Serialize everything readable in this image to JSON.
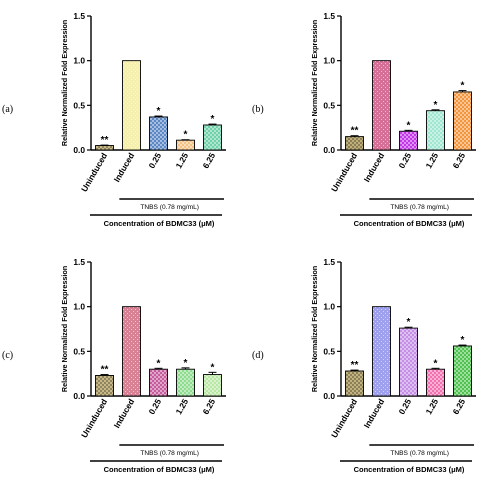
{
  "chart_data": [
    {
      "type": "bar",
      "panel_label": "(a)",
      "ylabel": "Relative Normalized Fold Expression",
      "ylim": [
        0,
        1.5
      ],
      "yticks": [
        "0.0",
        "0.5",
        "1.0",
        "1.5"
      ],
      "categories": [
        "Uninduced",
        "Induced",
        "0.25",
        "1.25",
        "6.25"
      ],
      "values": [
        0.05,
        1.0,
        0.37,
        0.11,
        0.28
      ],
      "errors": [
        0.005,
        0.0,
        0.01,
        0.005,
        0.01
      ],
      "significance": [
        "**",
        "",
        "*",
        "*",
        "*"
      ],
      "bar_colors": [
        "#c8b886",
        "#f6f0b0",
        "#5b87c4",
        "#f4c283",
        "#6fd1aa"
      ],
      "bracket_label": "TNBS (0.78 mg/mL)",
      "xlabel": "Concentration of BDMC33 (μM)"
    },
    {
      "type": "bar",
      "panel_label": "(b)",
      "ylabel": "Relative Normalized Fold Expression",
      "ylim": [
        0,
        1.5
      ],
      "yticks": [
        "0.0",
        "0.5",
        "1.0",
        "1.5"
      ],
      "categories": [
        "Uninduced",
        "Induced",
        "0.25",
        "1.25",
        "6.25"
      ],
      "values": [
        0.15,
        1.0,
        0.21,
        0.44,
        0.65
      ],
      "errors": [
        0.01,
        0.0,
        0.01,
        0.01,
        0.015
      ],
      "significance": [
        "**",
        "",
        "*",
        "*",
        "*"
      ],
      "bar_colors": [
        "#bfae78",
        "#d56f95",
        "#c236e8",
        "#9fe6cf",
        "#f2953c"
      ],
      "bracket_label": "TNBS (0.78 mg/mL)",
      "xlabel": "Concentration of BDMC33 (μM)"
    },
    {
      "type": "bar",
      "panel_label": "(c)",
      "ylabel": "Relative Normalized Fold Expression",
      "ylim": [
        0,
        1.5
      ],
      "yticks": [
        "0.0",
        "0.5",
        "1.0",
        "1.5"
      ],
      "categories": [
        "Uninduced",
        "Induced",
        "0.25",
        "1.25",
        "6.25"
      ],
      "values": [
        0.23,
        1.0,
        0.3,
        0.3,
        0.24
      ],
      "errors": [
        0.01,
        0.0,
        0.01,
        0.015,
        0.025
      ],
      "significance": [
        "**",
        "",
        "*",
        "*",
        "*"
      ],
      "bar_colors": [
        "#c8b886",
        "#d88094",
        "#c65c9d",
        "#8edc8e",
        "#b9e8a4"
      ],
      "bracket_label": "TNBS (0.78 mg/mL)",
      "xlabel": "Concentration of BDMC33 (μM)"
    },
    {
      "type": "bar",
      "panel_label": "(d)",
      "ylabel": "Relative Normalized Fold Expression",
      "ylim": [
        0,
        1.5
      ],
      "yticks": [
        "0.0",
        "0.5",
        "1.0",
        "1.5"
      ],
      "categories": [
        "Uninduced",
        "Induced",
        "0.25",
        "1.25",
        "6.25"
      ],
      "values": [
        0.28,
        1.0,
        0.76,
        0.3,
        0.56
      ],
      "errors": [
        0.01,
        0.0,
        0.01,
        0.01,
        0.01
      ],
      "significance": [
        "**",
        "",
        "*",
        "*",
        "*"
      ],
      "bar_colors": [
        "#c2b27e",
        "#9ea0ee",
        "#c58ee6",
        "#f26fb0",
        "#4fc24f"
      ],
      "bracket_label": "TNBS (0.78 mg/mL)",
      "xlabel": "Concentration of BDMC33 (μM)"
    }
  ]
}
